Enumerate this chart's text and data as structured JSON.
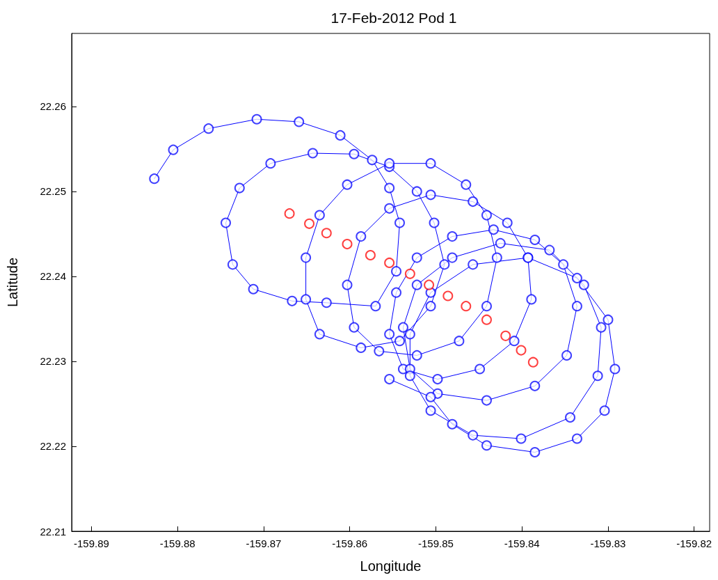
{
  "chart_data": {
    "type": "line",
    "title": "17-Feb-2012 Pod 1",
    "xlabel": "Longitude",
    "ylabel": "Latitude",
    "xlim": [
      -159.8923,
      -159.8182
    ],
    "ylim": [
      22.21,
      22.2686
    ],
    "xticks": [
      -159.89,
      -159.88,
      -159.87,
      -159.86,
      -159.85,
      -159.84,
      -159.83,
      -159.82
    ],
    "yticks": [
      22.21,
      22.22,
      22.23,
      22.24,
      22.25,
      22.26
    ],
    "grid": false,
    "marker": "circle",
    "line_style": "solid",
    "series": [
      {
        "type": "line",
        "color": "#0000ff",
        "x": [
          -159.8827,
          -159.8805,
          -159.8764,
          -159.8708,
          -159.8659,
          -159.8611,
          -159.8574,
          -159.8554,
          -159.8542,
          -159.8546,
          -159.857,
          -159.8627,
          -159.8667,
          -159.8712,
          -159.8736,
          -159.8744,
          -159.8728,
          -159.8692,
          -159.8643,
          -159.8595,
          -159.8554,
          -159.8522,
          -159.8502,
          -159.849,
          -159.8506,
          -159.8542,
          -159.8587,
          -159.8635,
          -159.8651,
          -159.8651,
          -159.8635,
          -159.8603,
          -159.8554,
          -159.8506,
          -159.8465,
          -159.8441,
          -159.8429,
          -159.8441,
          -159.8473,
          -159.8522,
          -159.8566,
          -159.8595,
          -159.8603,
          -159.8587,
          -159.8554,
          -159.8506,
          -159.8457,
          -159.8417,
          -159.8393,
          -159.8389,
          -159.8409,
          -159.8449,
          -159.8498,
          -159.8538,
          -159.8554,
          -159.8546,
          -159.8522,
          -159.8481,
          -159.8433,
          -159.8385,
          -159.8352,
          -159.8336,
          -159.8348,
          -159.8385,
          -159.8441,
          -159.8498,
          -159.853,
          -159.8538,
          -159.8522,
          -159.8481,
          -159.8425,
          -159.8368,
          -159.8328,
          -159.8308,
          -159.8312,
          -159.8344,
          -159.8401,
          -159.8457,
          -159.8506,
          -159.853,
          -159.853,
          -159.8506,
          -159.8457,
          -159.8393,
          -159.8336,
          -159.83,
          -159.8292,
          -159.8304,
          -159.8336,
          -159.8385,
          -159.8441,
          -159.8481,
          -159.8506,
          -159.8554
        ],
        "values": [
          22.2515,
          22.2549,
          22.2574,
          22.2585,
          22.2582,
          22.2566,
          22.2537,
          22.2504,
          22.2463,
          22.2406,
          22.2365,
          22.2369,
          22.2371,
          22.2385,
          22.2414,
          22.2463,
          22.2504,
          22.2533,
          22.2545,
          22.2544,
          22.2529,
          22.25,
          22.2463,
          22.2414,
          22.2365,
          22.2324,
          22.2316,
          22.2332,
          22.2373,
          22.2422,
          22.2472,
          22.2508,
          22.2533,
          22.2533,
          22.2508,
          22.2472,
          22.2422,
          22.2365,
          22.2324,
          22.2307,
          22.2312,
          22.234,
          22.239,
          22.2447,
          22.248,
          22.2496,
          22.2488,
          22.2463,
          22.2422,
          22.2373,
          22.2324,
          22.2291,
          22.2279,
          22.2291,
          22.2332,
          22.2381,
          22.2422,
          22.2447,
          22.2455,
          22.2443,
          22.2414,
          22.2365,
          22.2307,
          22.2271,
          22.2254,
          22.2262,
          22.2291,
          22.234,
          22.239,
          22.2422,
          22.2439,
          22.2431,
          22.239,
          22.234,
          22.2283,
          22.2234,
          22.2209,
          22.2213,
          22.2242,
          22.2283,
          22.2332,
          22.2381,
          22.2414,
          22.2422,
          22.2398,
          22.2349,
          22.2291,
          22.2242,
          22.2209,
          22.2193,
          22.2201,
          22.2226,
          22.2258,
          22.2279
        ]
      },
      {
        "type": "scatter",
        "color": "#ff0000",
        "x": [
          -159.867,
          -159.8647,
          -159.8627,
          -159.8603,
          -159.8576,
          -159.8554,
          -159.853,
          -159.8508,
          -159.8486,
          -159.8465,
          -159.8441,
          -159.8419,
          -159.8401,
          -159.8387
        ],
        "values": [
          22.2474,
          22.2462,
          22.2451,
          22.2438,
          22.2425,
          22.2416,
          22.2403,
          22.239,
          22.2377,
          22.2365,
          22.2349,
          22.233,
          22.2313,
          22.2299
        ]
      }
    ]
  }
}
